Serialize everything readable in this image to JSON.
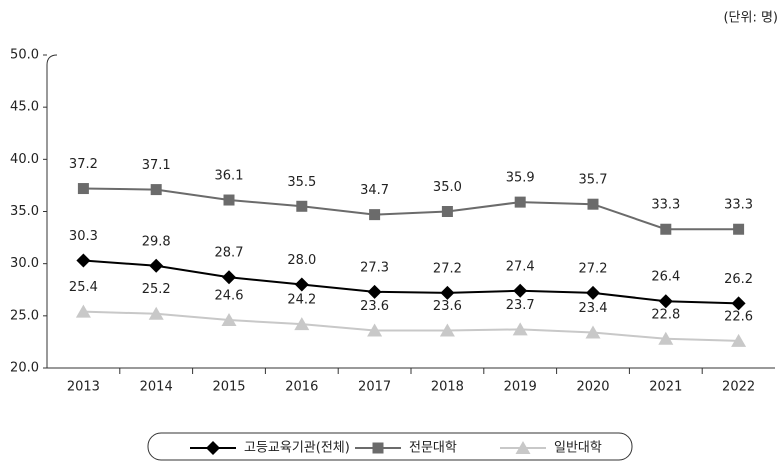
{
  "chart_data": {
    "type": "line",
    "unit": "(단위: 명)",
    "categories": [
      "2013",
      "2014",
      "2015",
      "2016",
      "2017",
      "2018",
      "2019",
      "2020",
      "2021",
      "2022"
    ],
    "ylim": [
      20,
      50
    ],
    "yticks": [
      {
        "value": 20,
        "label": "20.0"
      },
      {
        "value": 25,
        "label": "25.0"
      },
      {
        "value": 30,
        "label": "30.0"
      },
      {
        "value": 35,
        "label": "35.0"
      },
      {
        "value": 40,
        "label": "40.0"
      },
      {
        "value": 45,
        "label": "45.0"
      },
      {
        "value": 50,
        "label": "50.0"
      }
    ],
    "series": [
      {
        "name": "고등교육기관(전체)",
        "color": "#000000",
        "marker": "diamond",
        "values": [
          30.3,
          29.8,
          28.7,
          28.0,
          27.3,
          27.2,
          27.4,
          27.2,
          26.4,
          26.2
        ],
        "value_labels": [
          "30.3",
          "29.8",
          "28.7",
          "28.0",
          "27.3",
          "27.2",
          "27.4",
          "27.2",
          "26.4",
          "26.2"
        ]
      },
      {
        "name": "전문대학",
        "color": "#6b6b6b",
        "marker": "square",
        "values": [
          37.2,
          37.1,
          36.1,
          35.5,
          34.7,
          35.0,
          35.9,
          35.7,
          33.3,
          33.3
        ],
        "value_labels": [
          "37.2",
          "37.1",
          "36.1",
          "35.5",
          "34.7",
          "35.0",
          "35.9",
          "35.7",
          "33.3",
          "33.3"
        ]
      },
      {
        "name": "일반대학",
        "color": "#c8c8c8",
        "marker": "triangle",
        "values": [
          25.4,
          25.2,
          24.6,
          24.2,
          23.6,
          23.6,
          23.7,
          23.4,
          22.8,
          22.6
        ],
        "value_labels": [
          "25.4",
          "25.2",
          "24.6",
          "24.2",
          "23.6",
          "23.6",
          "23.7",
          "23.4",
          "22.8",
          "22.6"
        ]
      }
    ]
  }
}
